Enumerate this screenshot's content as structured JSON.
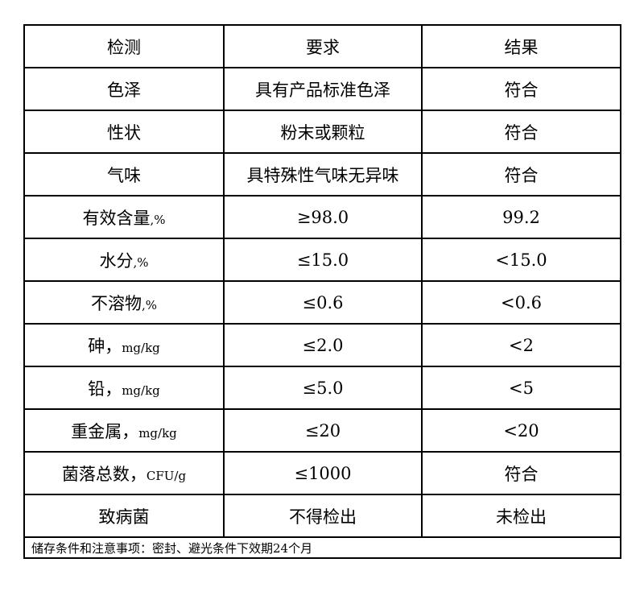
{
  "header": [
    "检测",
    "要求",
    "结果"
  ],
  "rows": [
    {
      "item": "色泽",
      "unit": "",
      "req": "具有产品标准色泽",
      "res": "符合"
    },
    {
      "item": "性状",
      "unit": "",
      "req": "粉末或颗粒",
      "res": "符合"
    },
    {
      "item": "气味",
      "unit": "",
      "req": "具特殊性气味无异味",
      "res": "符合"
    },
    {
      "item": "有效含量",
      "unit": ",%",
      "req": "≥98.0",
      "res": "99.2"
    },
    {
      "item": "水分",
      "unit": ",%",
      "req": "≤15.0",
      "res": "<15.0"
    },
    {
      "item": "不溶物",
      "unit": ",%",
      "req": "≤0.6",
      "res": "<0.6"
    },
    {
      "item": "砷，",
      "unit": "mg/kg",
      "req": "≤2.0",
      "res": "<2"
    },
    {
      "item": "铅，",
      "unit": "mg/kg",
      "req": "≤5.0",
      "res": "<5"
    },
    {
      "item": "重金属，",
      "unit": "mg/kg",
      "req": "≤20",
      "res": "<20"
    },
    {
      "item": "菌落总数，",
      "unit": "CFU/g",
      "req": "≤1000",
      "res": "符合"
    },
    {
      "item": "致病菌",
      "unit": "",
      "req": "不得检出",
      "res": "未检出"
    }
  ],
  "note": "储存条件和注意事项：密封、避光条件下效期24个月"
}
